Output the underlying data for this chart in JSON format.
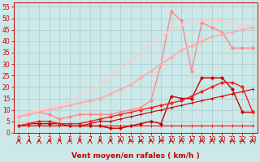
{
  "background_color": "#cce8e8",
  "grid_color": "#aacccc",
  "xlabel": "Vent moyen/en rafales ( km/h )",
  "xlim": [
    -0.5,
    23.5
  ],
  "ylim": [
    0,
    57
  ],
  "yticks": [
    0,
    5,
    10,
    15,
    20,
    25,
    30,
    35,
    40,
    45,
    50,
    55
  ],
  "xticks": [
    0,
    1,
    2,
    3,
    4,
    5,
    6,
    7,
    8,
    9,
    10,
    11,
    12,
    13,
    14,
    15,
    16,
    17,
    18,
    19,
    20,
    21,
    22,
    23
  ],
  "lines": [
    {
      "x": [
        0,
        1,
        2,
        3,
        4,
        5,
        6,
        7,
        8,
        9,
        10,
        11,
        12,
        13,
        14,
        15,
        16,
        17,
        18,
        19,
        20,
        21,
        22,
        23
      ],
      "y": [
        3,
        3,
        3,
        3,
        3,
        3,
        3,
        3,
        3,
        3,
        3,
        3,
        3,
        3,
        3,
        3,
        3,
        3,
        3,
        3,
        3,
        3,
        3,
        3
      ],
      "color": "#ff0000",
      "lw": 0.8,
      "marker": "+",
      "ms": 3.0
    },
    {
      "x": [
        0,
        1,
        2,
        3,
        4,
        5,
        6,
        7,
        8,
        9,
        10,
        11,
        12,
        13,
        14,
        15,
        16,
        17,
        18,
        19,
        20,
        21,
        22,
        23
      ],
      "y": [
        3,
        3,
        3,
        3,
        3,
        3,
        3,
        4,
        5,
        5,
        6,
        7,
        8,
        9,
        10,
        11,
        12,
        13,
        14,
        15,
        16,
        17,
        18,
        19
      ],
      "color": "#cc0000",
      "lw": 0.8,
      "marker": "+",
      "ms": 3.0
    },
    {
      "x": [
        0,
        1,
        2,
        3,
        4,
        5,
        6,
        7,
        8,
        9,
        10,
        11,
        12,
        13,
        14,
        15,
        16,
        17,
        18,
        19,
        20,
        21,
        22,
        23
      ],
      "y": [
        3,
        4,
        4,
        4,
        4,
        3,
        3,
        3,
        3,
        2,
        2,
        3,
        4,
        5,
        4,
        16,
        15,
        15,
        24,
        24,
        24,
        19,
        9,
        9
      ],
      "color": "#cc0000",
      "lw": 1.0,
      "marker": "D",
      "ms": 2.0
    },
    {
      "x": [
        0,
        1,
        2,
        3,
        4,
        5,
        6,
        7,
        8,
        9,
        10,
        11,
        12,
        13,
        14,
        15,
        16,
        17,
        18,
        19,
        20,
        21,
        22,
        23
      ],
      "y": [
        3,
        4,
        5,
        5,
        4,
        4,
        4,
        5,
        6,
        7,
        8,
        9,
        10,
        11,
        12,
        13,
        14,
        16,
        18,
        20,
        22,
        22,
        20,
        9
      ],
      "color": "#ee2222",
      "lw": 1.0,
      "marker": "D",
      "ms": 2.0
    },
    {
      "x": [
        0,
        1,
        2,
        3,
        4,
        5,
        6,
        7,
        8,
        9,
        10,
        11,
        12,
        13,
        14,
        15,
        16,
        17,
        18,
        19,
        20,
        21,
        22,
        23
      ],
      "y": [
        7,
        8,
        9,
        8,
        6,
        7,
        8,
        8,
        8,
        8,
        9,
        10,
        11,
        14,
        30,
        53,
        49,
        27,
        48,
        46,
        44,
        37,
        37,
        37
      ],
      "color": "#ff8888",
      "lw": 1.0,
      "marker": "D",
      "ms": 2.0
    },
    {
      "x": [
        0,
        1,
        2,
        3,
        4,
        5,
        6,
        7,
        8,
        9,
        10,
        11,
        12,
        13,
        14,
        15,
        16,
        17,
        18,
        19,
        20,
        21,
        22,
        23
      ],
      "y": [
        7,
        8,
        9,
        10,
        11,
        12,
        13,
        14,
        15,
        17,
        19,
        21,
        24,
        27,
        30,
        33,
        36,
        38,
        40,
        42,
        43,
        44,
        45,
        46
      ],
      "color": "#ffaaaa",
      "lw": 1.2,
      "marker": "D",
      "ms": 2.0
    },
    {
      "x": [
        0,
        1,
        2,
        3,
        4,
        5,
        6,
        7,
        8,
        9,
        10,
        11,
        12,
        13,
        14,
        15,
        16,
        17,
        18,
        19,
        20,
        21,
        22,
        23
      ],
      "y": [
        8,
        9,
        10,
        11,
        12,
        14,
        16,
        18,
        21,
        24,
        28,
        31,
        35,
        39,
        42,
        45,
        47,
        48,
        49,
        49,
        49,
        48,
        47,
        47
      ],
      "color": "#ffcccc",
      "lw": 1.2,
      "marker": null,
      "ms": 0
    }
  ],
  "tick_fontsize": 5.5,
  "label_fontsize": 6.5
}
